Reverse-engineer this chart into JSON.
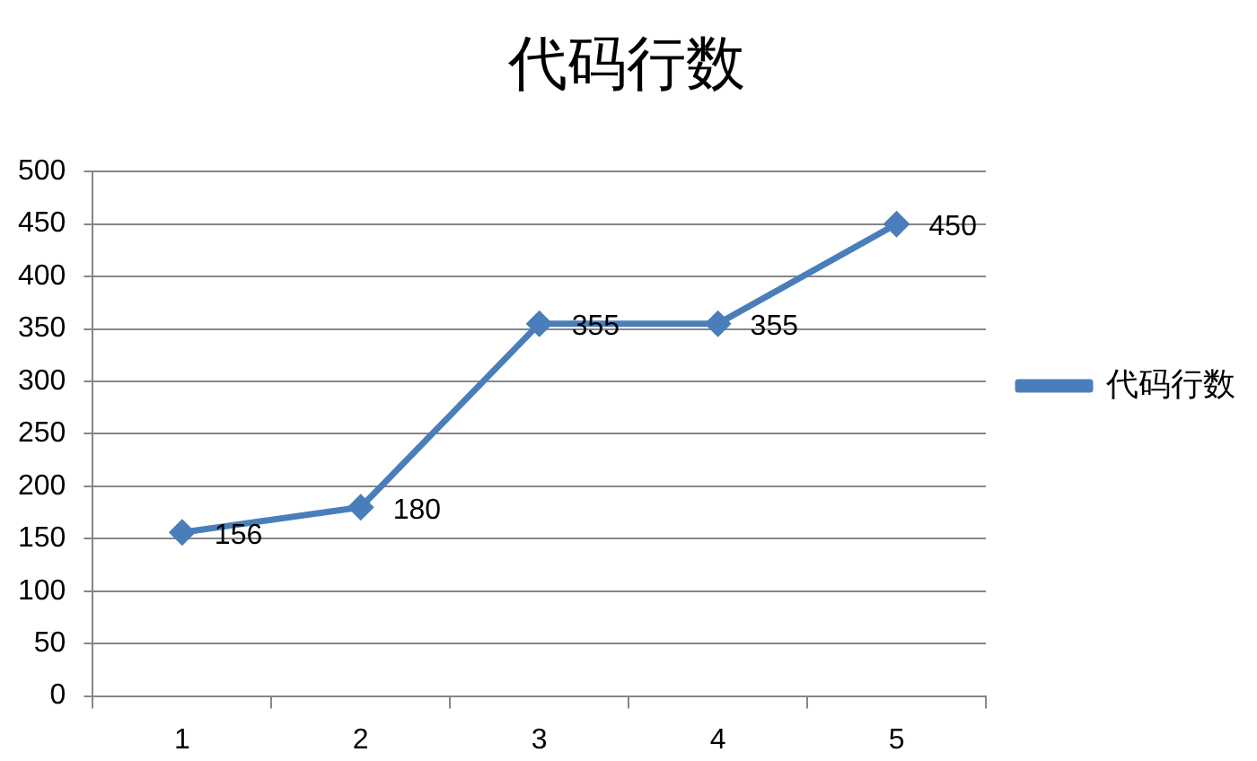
{
  "chart_data": {
    "type": "line",
    "title": "代码行数",
    "categories": [
      "1",
      "2",
      "3",
      "4",
      "5"
    ],
    "series": [
      {
        "name": "代码行数",
        "color": "#4a7ebb",
        "values": [
          156,
          180,
          355,
          355,
          450
        ]
      }
    ],
    "ylim": [
      0,
      500
    ],
    "yticks": [
      0,
      50,
      100,
      150,
      200,
      250,
      300,
      350,
      400,
      450,
      500
    ],
    "grid": "y",
    "legend": "right",
    "marker": "diamond",
    "line_style": "solid",
    "data_labels": true
  }
}
